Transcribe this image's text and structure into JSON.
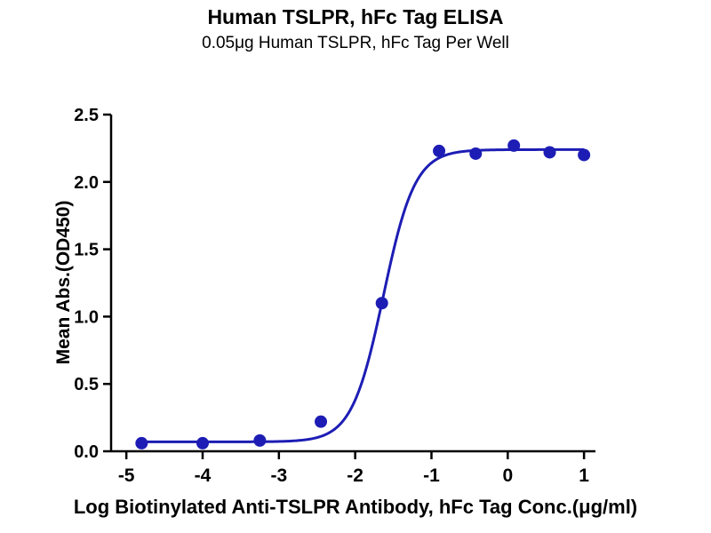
{
  "title": "Human TSLPR, hFc Tag ELISA",
  "subtitle": "0.05μg Human TSLPR, hFc Tag Per Well",
  "chart_data": {
    "type": "scatter",
    "title": "Human TSLPR, hFc Tag ELISA",
    "subtitle": "0.05μg Human TSLPR, hFc Tag Per Well",
    "xlabel": "Log Biotinylated Anti-TSLPR Antibody, hFc Tag Conc.(μg/ml)",
    "ylabel": "Mean Abs.(OD450)",
    "xlim": [
      -5.2,
      1.15
    ],
    "ylim": [
      0,
      2.5
    ],
    "xticks": [
      -5,
      -4,
      -3,
      -2,
      -1,
      0,
      1
    ],
    "xtick_labels": [
      "-5",
      "-4",
      "-3",
      "-2",
      "-1",
      "0",
      "1"
    ],
    "yticks": [
      0,
      0.5,
      1,
      1.5,
      2,
      2.5
    ],
    "ytick_labels": [
      "0.0",
      "0.5",
      "1.0",
      "1.5",
      "2.0",
      "2.5"
    ],
    "points": [
      [
        -4.8,
        0.06
      ],
      [
        -4.0,
        0.06
      ],
      [
        -3.25,
        0.08
      ],
      [
        -2.45,
        0.22
      ],
      [
        -1.65,
        1.1
      ],
      [
        -0.9,
        2.23
      ],
      [
        -0.42,
        2.21
      ],
      [
        0.08,
        2.27
      ],
      [
        0.55,
        2.22
      ],
      [
        1.0,
        2.2
      ]
    ],
    "fit_4pl": {
      "bottom": 0.07,
      "top": 2.24,
      "logec50": -1.63,
      "hill": 2.1
    },
    "curve_x_range": [
      -4.85,
      1.0
    ],
    "grid": false,
    "legend": null,
    "colors": {
      "series": "#1d1db5",
      "axis": "#000000",
      "text": "#000000"
    }
  }
}
